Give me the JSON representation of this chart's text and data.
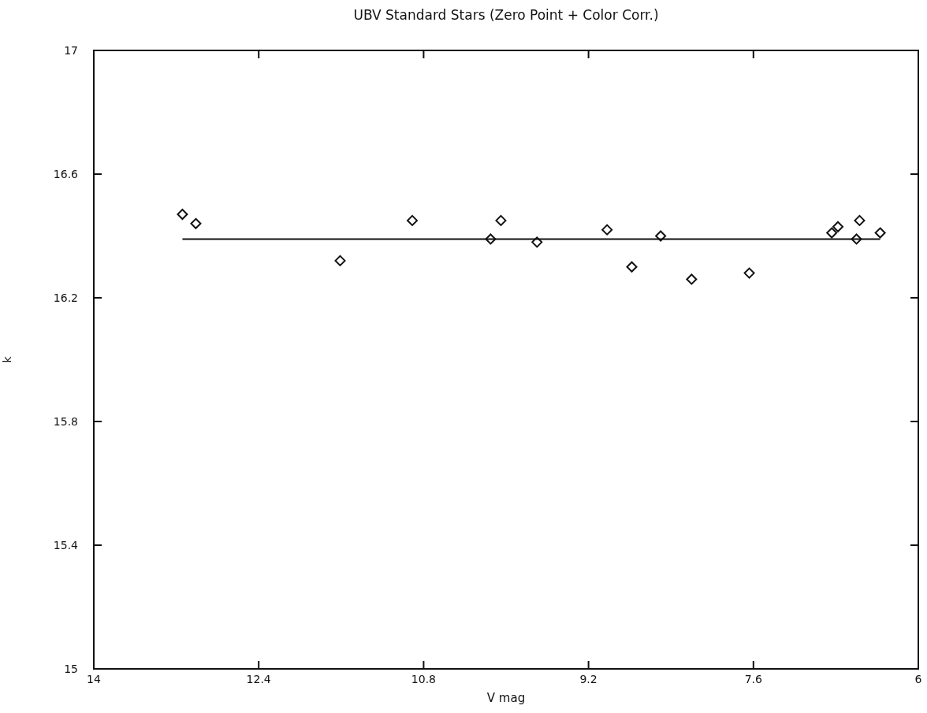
{
  "chart_data": {
    "type": "scatter",
    "title": "UBV Standard Stars (Zero Point + Color Corr.)",
    "xlabel": "V mag",
    "ylabel": "k",
    "xlim": [
      14,
      6
    ],
    "xticks": [
      14,
      12.4,
      10.8,
      9.2,
      7.6,
      6
    ],
    "ylim": [
      15,
      17
    ],
    "yticks": [
      15,
      15.4,
      15.8,
      16.2,
      16.6,
      17
    ],
    "grid": false,
    "series": [
      {
        "marker": "diamond",
        "color": "#111111",
        "x": [
          13.14,
          13.01,
          11.61,
          10.91,
          10.15,
          10.05,
          9.7,
          9.02,
          8.78,
          8.5,
          8.2,
          7.64,
          6.84,
          6.78,
          6.57,
          6.6,
          6.37
        ],
        "values": [
          16.47,
          16.44,
          16.32,
          16.45,
          16.39,
          16.45,
          16.38,
          16.42,
          16.3,
          16.4,
          16.26,
          16.28,
          16.41,
          16.43,
          16.45,
          16.39,
          16.41
        ]
      },
      {
        "type": "line",
        "marker": "none",
        "color": "#111111",
        "line_style": "solid",
        "x": [
          13.14,
          6.37
        ],
        "values": [
          16.39,
          16.39
        ]
      }
    ]
  }
}
